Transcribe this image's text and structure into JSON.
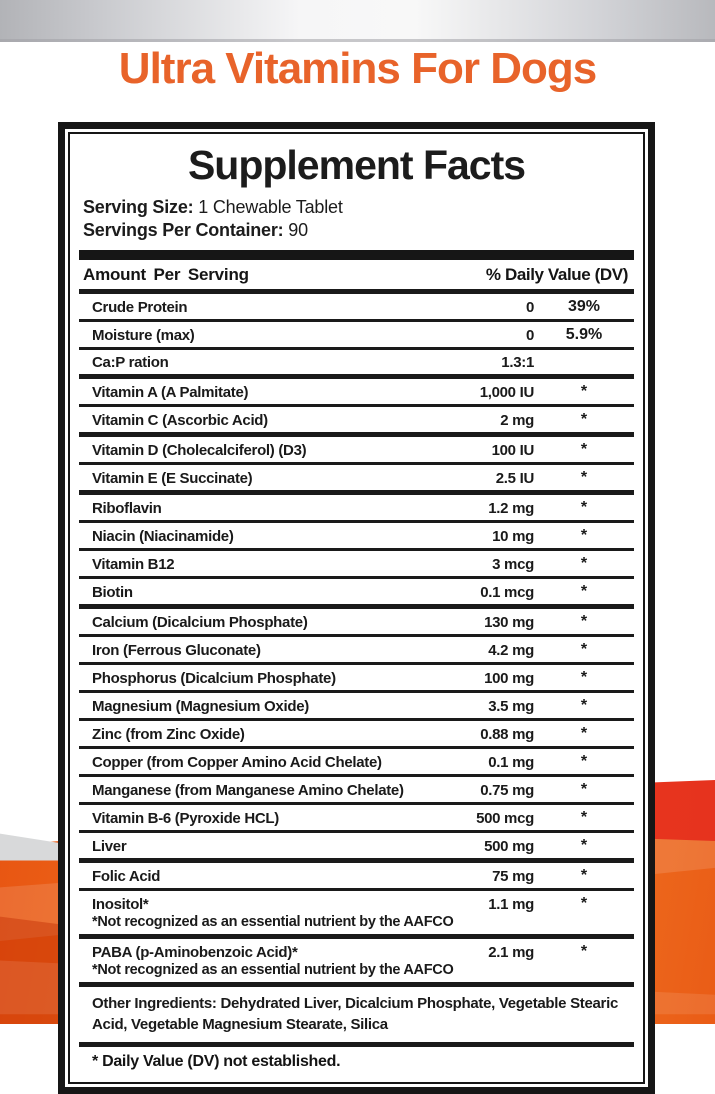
{
  "page": {
    "title": "Ultra Vitamins For Dogs"
  },
  "panel": {
    "heading": "Supplement Facts",
    "serving_size_label": "Serving Size:",
    "serving_size_value": "1 Chewable Tablet",
    "servings_label": "Servings Per Container:",
    "servings_value": "90",
    "columns": {
      "amount": "Amount Per Serving",
      "dv": "% Daily Value (DV)"
    },
    "rows": [
      {
        "name": "Crude Protein",
        "amount": "0",
        "dv": "39%",
        "sep": "thin"
      },
      {
        "name": "Moisture (max)",
        "amount": "0",
        "dv": "5.9%",
        "sep": "thin"
      },
      {
        "name": "Ca:P ration",
        "amount": "1.3:1",
        "dv": "",
        "sep": "thick"
      },
      {
        "name": "Vitamin A (A Palmitate)",
        "amount": "1,000 IU",
        "dv": "*",
        "sep": "thin"
      },
      {
        "name": "Vitamin C (Ascorbic Acid)",
        "amount": "2 mg",
        "dv": "*",
        "sep": "thick"
      },
      {
        "name": "Vitamin D (Cholecalciferol) (D3)",
        "amount": "100 IU",
        "dv": "*",
        "sep": "thin"
      },
      {
        "name": "Vitamin E (E Succinate)",
        "amount": "2.5 IU",
        "dv": "*",
        "sep": "thick"
      },
      {
        "name": "Riboflavin",
        "amount": "1.2 mg",
        "dv": "*",
        "sep": "thin"
      },
      {
        "name": "Niacin (Niacinamide)",
        "amount": "10 mg",
        "dv": "*",
        "sep": "thin"
      },
      {
        "name": "Vitamin B12",
        "amount": "3 mcg",
        "dv": "*",
        "sep": "thin"
      },
      {
        "name": "Biotin",
        "amount": "0.1 mcg",
        "dv": "*",
        "sep": "thick"
      },
      {
        "name": "Calcium (Dicalcium Phosphate)",
        "amount": "130 mg",
        "dv": "*",
        "sep": "thin"
      },
      {
        "name": "Iron (Ferrous Gluconate)",
        "amount": "4.2 mg",
        "dv": "*",
        "sep": "thin"
      },
      {
        "name": "Phosphorus (Dicalcium Phosphate)",
        "amount": "100 mg",
        "dv": "*",
        "sep": "thin"
      },
      {
        "name": "Magnesium (Magnesium Oxide)",
        "amount": "3.5 mg",
        "dv": "*",
        "sep": "thin"
      },
      {
        "name": "Zinc (from Zinc Oxide)",
        "amount": "0.88 mg",
        "dv": "*",
        "sep": "thin"
      },
      {
        "name": "Copper (from Copper Amino Acid Chelate)",
        "amount": "0.1 mg",
        "dv": "*",
        "sep": "thin"
      },
      {
        "name": "Manganese (from Manganese Amino Chelate)",
        "amount": "0.75 mg",
        "dv": "*",
        "sep": "thin"
      },
      {
        "name": "Vitamin B-6 (Pyroxide HCL)",
        "amount": "500 mcg",
        "dv": "*",
        "sep": "thin"
      },
      {
        "name": "Liver",
        "amount": "500 mg",
        "dv": "*",
        "sep": "thick"
      },
      {
        "name": "Folic Acid",
        "amount": "75 mg",
        "dv": "*",
        "sep": "thin"
      },
      {
        "name": "Inositol*",
        "amount": "1.1 mg",
        "dv": "*",
        "note": "*Not recognized as an essential nutrient by the AAFCO",
        "sep": "thick"
      },
      {
        "name": "PABA (p-Aminobenzoic Acid)*",
        "amount": "2.1 mg",
        "dv": "*",
        "note": "*Not recognized as an essential nutrient by the AAFCO",
        "sep": "thick"
      }
    ],
    "other_ingredients": "Other Ingredients: Dehydrated Liver, Dicalcium Phosphate, Vegetable Stearic Acid, Vegetable Magnesium Stearate, Silica",
    "footnote": "* Daily Value (DV) not established."
  },
  "colors": {
    "title_orange": "#e8632a",
    "band_silver": "#c3c4c8",
    "wave_orange": "#f0731f",
    "wave_deep_orange": "#e85512",
    "wave_red": "#e6321e",
    "wave_gray": "#d8d9da",
    "rule_black": "#1a1a1a"
  }
}
